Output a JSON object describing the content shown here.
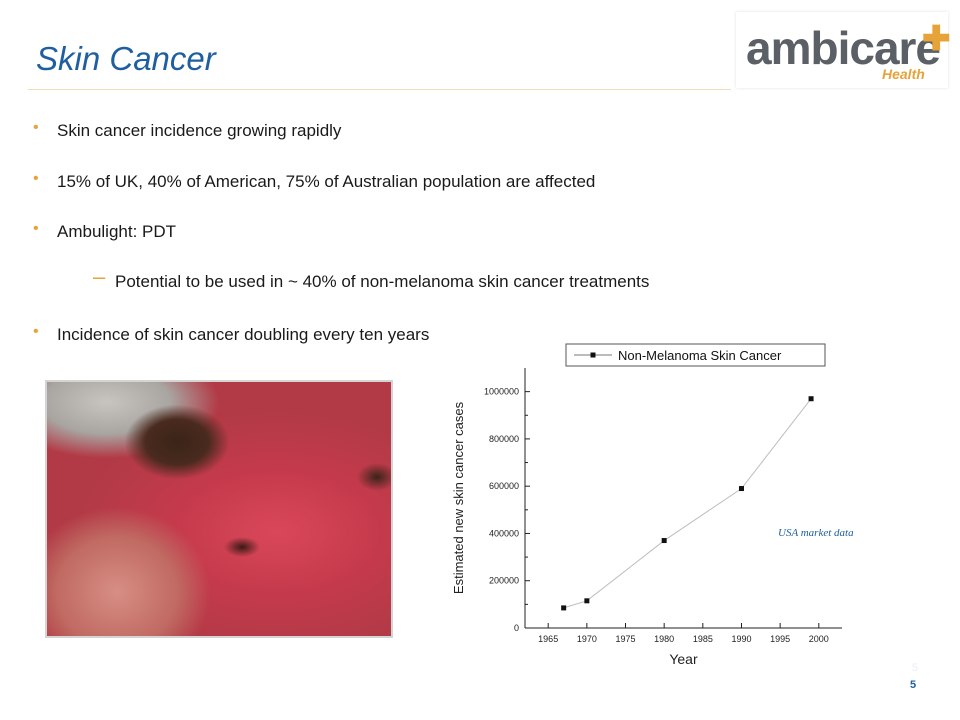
{
  "slide": {
    "title": "Skin Cancer",
    "page_number": "5",
    "note": "USA market data"
  },
  "logo": {
    "word": "ambicare",
    "sub": "Health"
  },
  "colors": {
    "title": "#1f5fa0",
    "bullet_marker": "#e6a33a",
    "body_text": "#1a1a1a"
  },
  "bullets": [
    {
      "text": "Skin cancer incidence growing rapidly",
      "level": 1
    },
    {
      "text": "15% of UK, 40% of American, 75% of Australian population are affected",
      "level": 1
    },
    {
      "text": "Ambulight: PDT",
      "level": 1
    },
    {
      "text": "Potential to be used in ~ 40% of non-melanoma skin cancer treatments",
      "level": 2
    },
    {
      "text": "Incidence of skin cancer doubling every ten years",
      "level": 1
    }
  ],
  "chart_data": {
    "type": "line",
    "xlabel": "Year",
    "ylabel": "Estimated new skin cancer cases",
    "xlim": [
      1962,
      2003
    ],
    "ylim": [
      0,
      1100000
    ],
    "x_ticks": [
      1965,
      1970,
      1975,
      1980,
      1985,
      1990,
      1995,
      2000
    ],
    "y_ticks": [
      0,
      200000,
      400000,
      600000,
      800000,
      1000000
    ],
    "legend_position": "top",
    "series": [
      {
        "name": "Non-Melanoma Skin Cancer",
        "x": [
          1967,
          1970,
          1980,
          1990,
          1999
        ],
        "y": [
          85000,
          115000,
          370000,
          590000,
          970000
        ]
      }
    ]
  }
}
